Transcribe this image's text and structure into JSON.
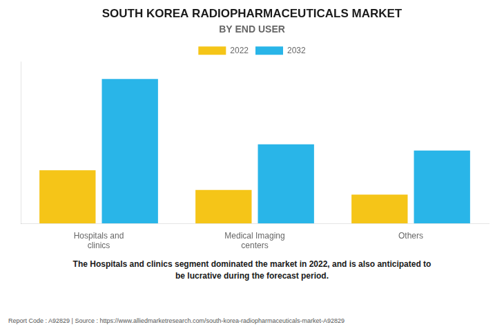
{
  "chart_data": {
    "type": "bar",
    "title": "SOUTH KOREA RADIOPHARMACEUTICALS MARKET",
    "subtitle": "BY END USER",
    "categories": [
      "Hospitals and\nclinics",
      "Medical Imaging\ncenters",
      "Others"
    ],
    "series": [
      {
        "name": "2022",
        "color": "#F5C518",
        "values": [
          3.5,
          2.2,
          1.9
        ]
      },
      {
        "name": "2032",
        "color": "#29B5E8",
        "values": [
          9.5,
          5.2,
          4.8
        ]
      }
    ],
    "ylim": [
      0,
      10.64
    ],
    "yticks": [],
    "grid": false,
    "legend": "top",
    "tick_labels": "x",
    "annotations": [
      "The Hospitals and clinics segment dominated the market in 2022, and is also anticipated to\nbe lucrative during the forecast period.",
      "Report Code : A92829  |  Source : https://www.alliedmarketresearch.com/south-korea-radiopharmaceuticals-market-A92829"
    ]
  }
}
